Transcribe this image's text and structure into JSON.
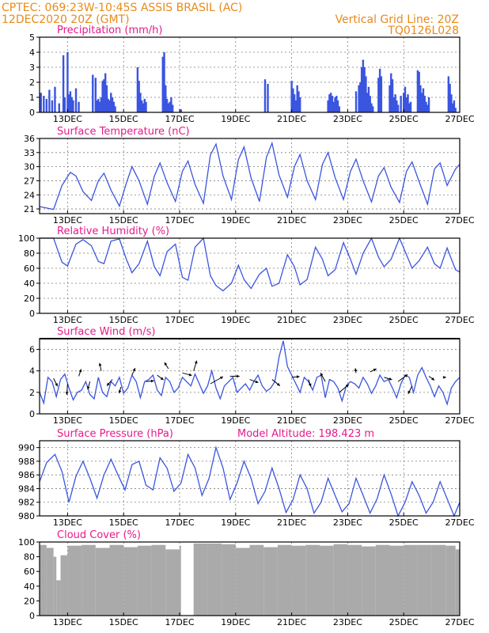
{
  "header": {
    "left_line1": "CPTEC:   069:23W-10:45S   ASSIS BRASIL (AC)",
    "left_line2": "12DEC2020 20Z (GMT)",
    "right_line1": "Vertical Grid Line: 20Z",
    "right_line2": "TQ0126L028"
  },
  "colors": {
    "header": "#e88a1a",
    "panel_title": "#e8198c",
    "series": "#3a55e0",
    "cloud": "#aaaaaa"
  },
  "x_axis": {
    "labels": [
      "13DEC",
      "15DEC",
      "17DEC",
      "19DEC",
      "21DEC",
      "23DEC",
      "25DEC",
      "27DEC"
    ],
    "label_days": [
      1,
      3,
      5,
      7,
      9,
      11,
      13,
      15
    ],
    "range_days": [
      0,
      15
    ]
  },
  "chart_data": [
    {
      "type": "bar",
      "title": "Precipitation (mm/h)",
      "ylim": [
        0,
        5
      ],
      "yticks": [
        0,
        1,
        2,
        3,
        4,
        5
      ],
      "grid": true,
      "x": [
        0.05,
        0.15,
        0.25,
        0.35,
        0.45,
        0.55,
        0.7,
        0.85,
        0.9,
        1.0,
        1.05,
        1.1,
        1.15,
        1.2,
        1.3,
        1.4,
        1.9,
        2.0,
        2.05,
        2.1,
        2.15,
        2.2,
        2.25,
        2.3,
        2.35,
        2.4,
        2.45,
        2.5,
        2.55,
        2.6,
        2.65,
        2.7,
        3.5,
        3.55,
        3.6,
        3.65,
        3.7,
        3.75,
        3.8,
        4.4,
        4.45,
        4.5,
        4.55,
        4.6,
        4.65,
        4.7,
        4.75,
        5.05,
        8.05,
        8.15,
        9.0,
        9.05,
        9.1,
        9.15,
        9.2,
        9.25,
        9.3,
        10.3,
        10.35,
        10.4,
        10.45,
        10.5,
        10.55,
        10.6,
        10.65,
        10.7,
        11.3,
        11.4,
        11.45,
        11.5,
        11.55,
        11.6,
        11.65,
        11.7,
        11.75,
        11.8,
        11.85,
        11.9,
        12.1,
        12.15,
        12.2,
        12.5,
        12.55,
        12.6,
        12.65,
        12.7,
        12.75,
        12.8,
        12.9,
        13.0,
        13.05,
        13.1,
        13.15,
        13.2,
        13.25,
        13.5,
        13.55,
        13.6,
        13.65,
        13.7,
        13.75,
        13.8,
        13.85,
        13.9,
        14.6,
        14.65,
        14.7,
        14.75,
        14.8,
        14.85
      ],
      "values": [
        1.3,
        1.1,
        0.9,
        1.5,
        0.8,
        1.7,
        0.6,
        3.8,
        1.0,
        4.0,
        1.2,
        1.4,
        1.0,
        0.8,
        1.6,
        0.7,
        2.5,
        2.3,
        0.8,
        0.9,
        0.7,
        1.0,
        2.1,
        2.2,
        2.6,
        1.8,
        0.9,
        0.8,
        1.3,
        1.0,
        0.7,
        0.4,
        3.0,
        2.1,
        1.3,
        0.8,
        0.6,
        0.9,
        0.7,
        3.7,
        4.0,
        1.8,
        0.9,
        0.6,
        0.7,
        1.0,
        0.5,
        0.2,
        2.2,
        1.9,
        2.1,
        1.6,
        1.2,
        0.8,
        1.8,
        1.4,
        1.0,
        0.8,
        1.2,
        1.3,
        1.1,
        0.7,
        1.0,
        1.1,
        0.8,
        0.4,
        1.4,
        1.8,
        2.0,
        3.0,
        3.5,
        3.0,
        2.4,
        1.3,
        1.7,
        1.1,
        0.6,
        0.4,
        2.3,
        2.9,
        2.4,
        1.8,
        2.6,
        2.2,
        1.0,
        1.2,
        0.8,
        0.5,
        1.1,
        1.3,
        1.7,
        1.0,
        1.2,
        0.6,
        0.7,
        2.8,
        2.7,
        1.8,
        1.3,
        1.6,
        1.1,
        0.7,
        0.5,
        1.0,
        2.4,
        1.9,
        1.2,
        0.6,
        0.8,
        0.3
      ]
    },
    {
      "type": "line",
      "title": "Surface Temperature (nC)",
      "ylim": [
        20,
        36
      ],
      "yticks": [
        21,
        24,
        27,
        30,
        33,
        36
      ],
      "grid": true,
      "x": [
        0.0,
        0.25,
        0.5,
        0.8,
        1.1,
        1.3,
        1.55,
        1.85,
        2.1,
        2.3,
        2.55,
        2.85,
        3.1,
        3.3,
        3.55,
        3.85,
        4.1,
        4.3,
        4.55,
        4.85,
        5.1,
        5.3,
        5.55,
        5.85,
        6.1,
        6.3,
        6.55,
        6.85,
        7.1,
        7.3,
        7.55,
        7.85,
        8.1,
        8.3,
        8.55,
        8.85,
        9.1,
        9.3,
        9.55,
        9.85,
        10.1,
        10.3,
        10.55,
        10.85,
        11.1,
        11.3,
        11.55,
        11.85,
        12.1,
        12.3,
        12.55,
        12.85,
        13.1,
        13.3,
        13.55,
        13.85,
        14.1,
        14.3,
        14.55,
        14.85,
        15.0
      ],
      "values": [
        21.5,
        21.2,
        20.9,
        26.0,
        28.8,
        28.0,
        24.7,
        22.8,
        27.0,
        28.6,
        25.0,
        21.6,
        26.5,
        30.0,
        27.0,
        22.0,
        28.0,
        30.8,
        26.6,
        22.6,
        29.0,
        31.2,
        26.2,
        22.2,
        32.5,
        34.8,
        28.0,
        23.0,
        31.5,
        34.2,
        27.6,
        22.6,
        32.0,
        35.0,
        28.2,
        23.5,
        30.0,
        32.6,
        27.0,
        23.0,
        30.5,
        33.0,
        27.7,
        23.0,
        29.0,
        31.6,
        27.0,
        22.5,
        28.0,
        29.8,
        25.6,
        22.4,
        29.0,
        31.0,
        26.8,
        22.0,
        29.5,
        30.8,
        26.0,
        29.5,
        30.5
      ]
    },
    {
      "type": "line",
      "title": "Relative Humidity (%)",
      "ylim": [
        0,
        100
      ],
      "yticks": [
        0,
        20,
        40,
        60,
        80,
        100
      ],
      "grid": true,
      "x": [
        0.0,
        0.25,
        0.5,
        0.8,
        1.0,
        1.3,
        1.55,
        1.85,
        2.1,
        2.3,
        2.55,
        2.85,
        3.1,
        3.3,
        3.55,
        3.85,
        4.1,
        4.3,
        4.55,
        4.85,
        5.1,
        5.3,
        5.55,
        5.85,
        6.1,
        6.3,
        6.55,
        6.85,
        7.1,
        7.3,
        7.55,
        7.85,
        8.1,
        8.3,
        8.55,
        8.85,
        9.1,
        9.3,
        9.55,
        9.85,
        10.1,
        10.3,
        10.55,
        10.85,
        11.1,
        11.3,
        11.55,
        11.85,
        12.1,
        12.3,
        12.55,
        12.85,
        13.1,
        13.3,
        13.55,
        13.85,
        14.1,
        14.3,
        14.55,
        14.85,
        15.0
      ],
      "values": [
        100,
        100,
        100,
        68,
        63,
        92,
        98,
        90,
        69,
        66,
        96,
        99,
        72,
        54,
        66,
        96,
        62,
        50,
        82,
        92,
        48,
        44,
        88,
        100,
        50,
        37,
        30,
        40,
        64,
        45,
        33,
        52,
        60,
        36,
        40,
        78,
        62,
        38,
        45,
        88,
        72,
        50,
        58,
        94,
        72,
        52,
        80,
        100,
        75,
        62,
        72,
        100,
        78,
        60,
        70,
        88,
        66,
        60,
        87,
        58,
        55
      ]
    },
    {
      "type": "line",
      "title": "Surface Wind (m/s)",
      "ylim": [
        0,
        7
      ],
      "yticks": [
        0,
        2,
        4,
        6
      ],
      "grid": true,
      "x": [
        0.0,
        0.15,
        0.3,
        0.45,
        0.6,
        0.75,
        0.9,
        1.05,
        1.2,
        1.35,
        1.5,
        1.65,
        1.8,
        1.95,
        2.1,
        2.25,
        2.4,
        2.55,
        2.7,
        2.85,
        3.0,
        3.15,
        3.3,
        3.45,
        3.6,
        3.75,
        3.9,
        4.05,
        4.2,
        4.35,
        4.5,
        4.65,
        4.8,
        4.95,
        5.1,
        5.25,
        5.4,
        5.55,
        5.7,
        5.85,
        6.0,
        6.15,
        6.3,
        6.45,
        6.6,
        6.75,
        6.9,
        7.05,
        7.2,
        7.35,
        7.5,
        7.65,
        7.8,
        7.95,
        8.1,
        8.25,
        8.4,
        8.55,
        8.7,
        8.85,
        9.0,
        9.15,
        9.3,
        9.45,
        9.6,
        9.75,
        9.9,
        10.05,
        10.2,
        10.35,
        10.5,
        10.65,
        10.8,
        10.95,
        11.1,
        11.25,
        11.4,
        11.55,
        11.7,
        11.85,
        12.0,
        12.15,
        12.3,
        12.45,
        12.6,
        12.75,
        12.9,
        13.05,
        13.2,
        13.35,
        13.5,
        13.65,
        13.8,
        13.95,
        14.1,
        14.25,
        14.4,
        14.55,
        14.7,
        14.85,
        15.0
      ],
      "values": [
        2.0,
        1.0,
        3.4,
        3.0,
        1.6,
        3.2,
        3.7,
        2.4,
        1.3,
        2.0,
        2.2,
        3.0,
        1.8,
        1.4,
        3.4,
        2.0,
        1.6,
        3.0,
        2.6,
        3.4,
        1.9,
        2.4,
        3.6,
        3.0,
        1.5,
        3.0,
        3.2,
        3.6,
        2.2,
        1.7,
        3.4,
        3.0,
        2.0,
        2.4,
        3.4,
        3.0,
        2.6,
        3.7,
        2.8,
        1.9,
        2.6,
        4.0,
        2.4,
        1.4,
        2.6,
        3.0,
        3.4,
        2.0,
        2.4,
        2.8,
        2.2,
        3.0,
        3.6,
        2.6,
        2.1,
        2.4,
        3.0,
        5.3,
        6.8,
        4.4,
        3.6,
        2.8,
        2.0,
        3.4,
        3.0,
        2.2,
        3.4,
        3.6,
        1.5,
        3.2,
        3.0,
        2.4,
        1.2,
        2.6,
        3.0,
        2.8,
        2.4,
        3.4,
        2.8,
        1.9,
        2.6,
        3.6,
        3.0,
        3.2,
        2.4,
        1.5,
        2.8,
        3.6,
        3.4,
        2.0,
        3.6,
        4.3,
        3.4,
        2.6,
        1.6,
        2.6,
        2.0,
        0.9,
        2.4,
        3.0,
        3.4
      ],
      "arrows": [
        {
          "x": 0.5,
          "y": 3.3,
          "u": 0.5,
          "v": -1.0
        },
        {
          "x": 1.0,
          "y": 2.8,
          "u": -0.1,
          "v": -1.4
        },
        {
          "x": 1.4,
          "y": 3.5,
          "u": 0.3,
          "v": 0.9
        },
        {
          "x": 1.8,
          "y": 3.0,
          "u": -0.3,
          "v": -1.0
        },
        {
          "x": 2.2,
          "y": 4.0,
          "u": -0.2,
          "v": 1.0
        },
        {
          "x": 2.6,
          "y": 3.2,
          "u": -0.7,
          "v": -0.8
        },
        {
          "x": 2.9,
          "y": 2.5,
          "u": -0.2,
          "v": -0.8
        },
        {
          "x": 3.3,
          "y": 3.6,
          "u": 0.4,
          "v": 0.9
        },
        {
          "x": 3.8,
          "y": 3.0,
          "u": 1.0,
          "v": 0.1
        },
        {
          "x": 4.2,
          "y": 3.6,
          "u": 0.8,
          "v": -0.6
        },
        {
          "x": 4.6,
          "y": 4.2,
          "u": -0.5,
          "v": 0.8
        },
        {
          "x": 5.1,
          "y": 3.8,
          "u": 1.2,
          "v": -0.3
        },
        {
          "x": 5.5,
          "y": 4.0,
          "u": 0.4,
          "v": 1.3
        },
        {
          "x": 6.1,
          "y": 2.8,
          "u": 1.6,
          "v": 0.9
        },
        {
          "x": 6.8,
          "y": 3.5,
          "u": 1.2,
          "v": 0.0
        },
        {
          "x": 7.5,
          "y": 3.2,
          "u": 1.1,
          "v": -0.4
        },
        {
          "x": 8.3,
          "y": 3.2,
          "u": 1.0,
          "v": -0.8
        },
        {
          "x": 9.0,
          "y": 3.4,
          "u": 1.0,
          "v": 0.1
        },
        {
          "x": 9.6,
          "y": 3.2,
          "u": 0.3,
          "v": -0.9
        },
        {
          "x": 10.2,
          "y": 3.0,
          "u": -0.6,
          "v": 1.1
        },
        {
          "x": 10.7,
          "y": 2.0,
          "u": 1.2,
          "v": 1.0
        },
        {
          "x": 11.3,
          "y": 3.8,
          "u": -0.1,
          "v": 0.6
        },
        {
          "x": 11.8,
          "y": 3.9,
          "u": 0.8,
          "v": 0.4
        },
        {
          "x": 12.3,
          "y": 3.4,
          "u": 1.0,
          "v": -0.3
        },
        {
          "x": 12.8,
          "y": 3.0,
          "u": 1.2,
          "v": 0.9
        },
        {
          "x": 13.3,
          "y": 2.6,
          "u": -0.5,
          "v": -1.0
        },
        {
          "x": 13.9,
          "y": 3.5,
          "u": 0.7,
          "v": -0.5
        },
        {
          "x": 14.4,
          "y": 3.4,
          "u": 0.4,
          "v": 0.0
        }
      ]
    },
    {
      "type": "line",
      "title": "Surface Pressure (hPa)",
      "annotation": "Model Altitude: 198.423 m",
      "ylim": [
        980,
        991
      ],
      "yticks": [
        980,
        982,
        984,
        986,
        988,
        990
      ],
      "grid": true,
      "x": [
        0.0,
        0.25,
        0.55,
        0.8,
        1.05,
        1.3,
        1.55,
        1.8,
        2.05,
        2.3,
        2.55,
        2.8,
        3.05,
        3.3,
        3.55,
        3.8,
        4.05,
        4.3,
        4.55,
        4.8,
        5.05,
        5.3,
        5.55,
        5.8,
        6.05,
        6.3,
        6.55,
        6.8,
        7.05,
        7.3,
        7.55,
        7.8,
        8.05,
        8.3,
        8.55,
        8.8,
        9.05,
        9.3,
        9.55,
        9.8,
        10.05,
        10.3,
        10.55,
        10.8,
        11.05,
        11.3,
        11.55,
        11.8,
        12.05,
        12.3,
        12.55,
        12.8,
        13.05,
        13.3,
        13.55,
        13.8,
        14.05,
        14.3,
        14.55,
        14.8,
        15.0
      ],
      "values": [
        985.0,
        987.8,
        989.0,
        986.5,
        982.0,
        985.8,
        988.0,
        985.5,
        982.6,
        986.0,
        988.3,
        986.0,
        983.8,
        987.5,
        988.0,
        984.5,
        983.8,
        988.5,
        987.0,
        983.6,
        984.8,
        989.0,
        987.0,
        983.0,
        985.5,
        990.0,
        987.0,
        982.4,
        984.8,
        988.0,
        985.5,
        981.8,
        983.6,
        987.0,
        984.0,
        980.5,
        982.4,
        986.0,
        984.0,
        980.4,
        982.0,
        985.5,
        983.0,
        980.6,
        981.8,
        985.5,
        983.0,
        980.4,
        982.5,
        986.0,
        983.2,
        980.0,
        982.0,
        985.0,
        983.0,
        980.4,
        982.0,
        985.0,
        982.5,
        980.0,
        982.0
      ]
    },
    {
      "type": "bar",
      "title": "Cloud Cover (%)",
      "ylim": [
        0,
        100
      ],
      "yticks": [
        0,
        20,
        40,
        60,
        80,
        100
      ],
      "grid": false,
      "x": [
        0.0,
        0.25,
        0.5,
        0.6,
        0.75,
        1.0,
        1.5,
        2.0,
        2.5,
        3.0,
        3.5,
        4.0,
        4.5,
        5.0,
        5.05,
        5.5,
        6.0,
        6.5,
        7.0,
        7.5,
        8.0,
        8.5,
        9.0,
        9.5,
        10.0,
        10.5,
        11.0,
        11.5,
        12.0,
        12.5,
        13.0,
        13.5,
        14.0,
        14.5,
        14.85
      ],
      "values": [
        96,
        92,
        80,
        48,
        82,
        95,
        96,
        92,
        96,
        93,
        95,
        96,
        90,
        95,
        0,
        98,
        98,
        97,
        92,
        96,
        93,
        96,
        95,
        96,
        95,
        97,
        96,
        94,
        96,
        95,
        96,
        96,
        96,
        95,
        90
      ]
    }
  ]
}
